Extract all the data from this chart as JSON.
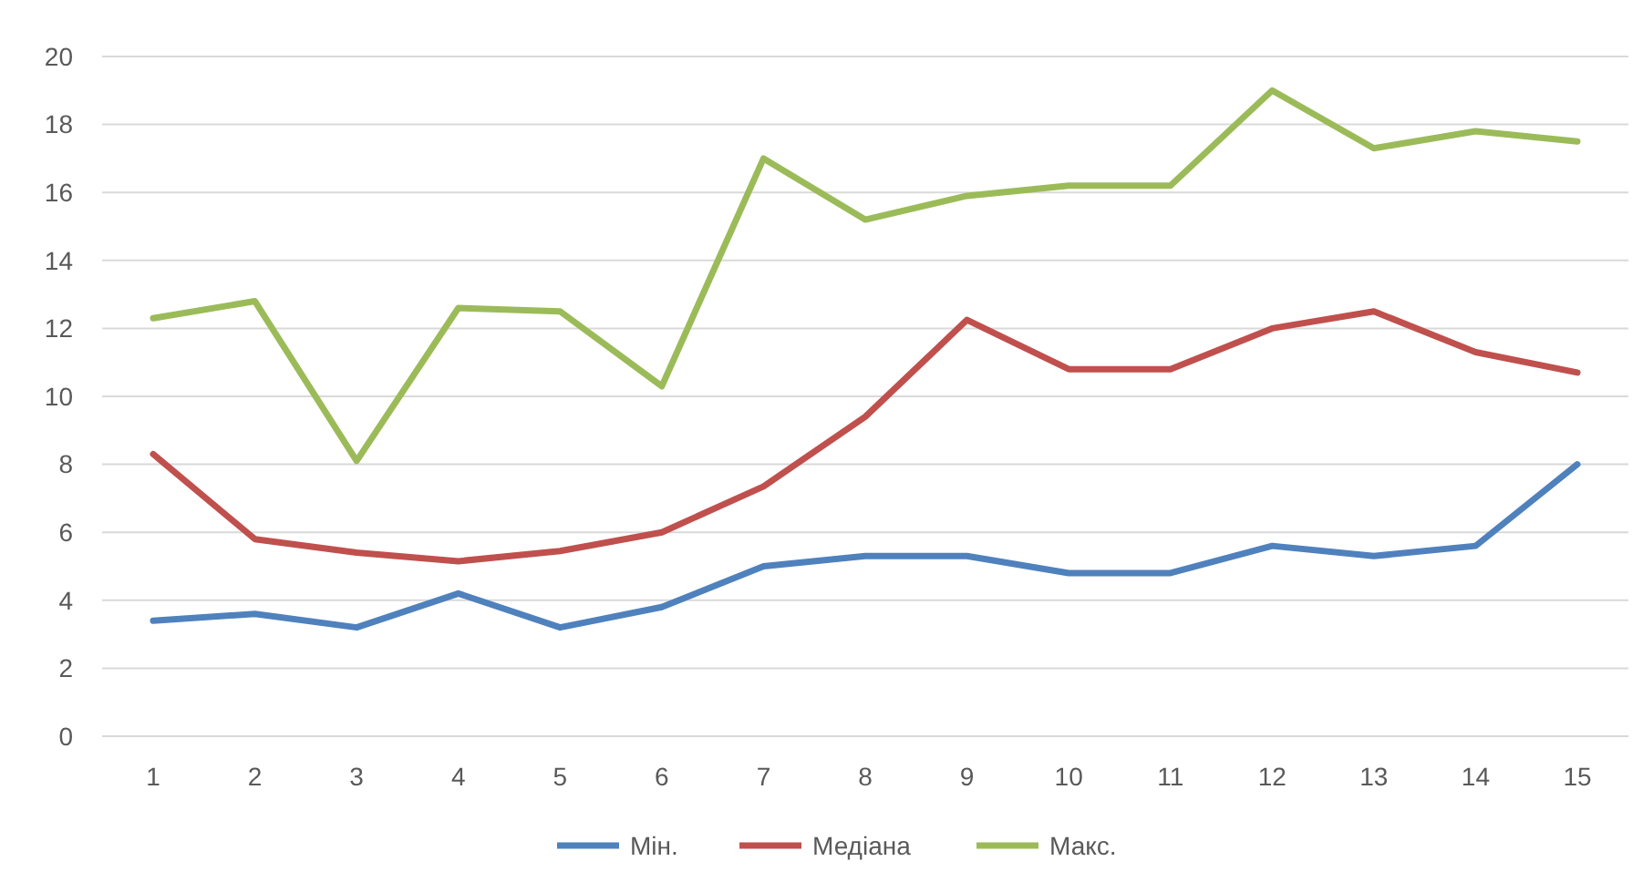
{
  "chart_data": {
    "type": "line",
    "categories": [
      "1",
      "2",
      "3",
      "4",
      "5",
      "6",
      "7",
      "8",
      "9",
      "10",
      "11",
      "12",
      "13",
      "14",
      "15"
    ],
    "series": [
      {
        "name": "Мін.",
        "color": "#4f81bd",
        "values": [
          3.4,
          3.6,
          3.2,
          4.2,
          3.2,
          3.8,
          5.0,
          5.3,
          5.3,
          4.8,
          4.8,
          5.6,
          5.3,
          5.6,
          8.0
        ]
      },
      {
        "name": "Медіана",
        "color": "#c0504d",
        "values": [
          8.3,
          5.8,
          5.4,
          5.15,
          5.45,
          6.0,
          7.35,
          9.4,
          12.25,
          10.8,
          10.8,
          12.0,
          12.5,
          11.3,
          10.7
        ]
      },
      {
        "name": "Макс.",
        "color": "#9bbb59",
        "values": [
          12.3,
          12.8,
          8.1,
          12.6,
          12.5,
          10.3,
          17.0,
          15.2,
          15.9,
          16.2,
          16.2,
          19.0,
          17.3,
          17.8,
          17.5
        ]
      }
    ],
    "ylim": [
      0,
      20
    ],
    "yticks": [
      0,
      2,
      4,
      6,
      8,
      10,
      12,
      14,
      16,
      18,
      20
    ],
    "grid": "y",
    "legend": "bottom",
    "marker": "none",
    "line_style": "solid"
  }
}
